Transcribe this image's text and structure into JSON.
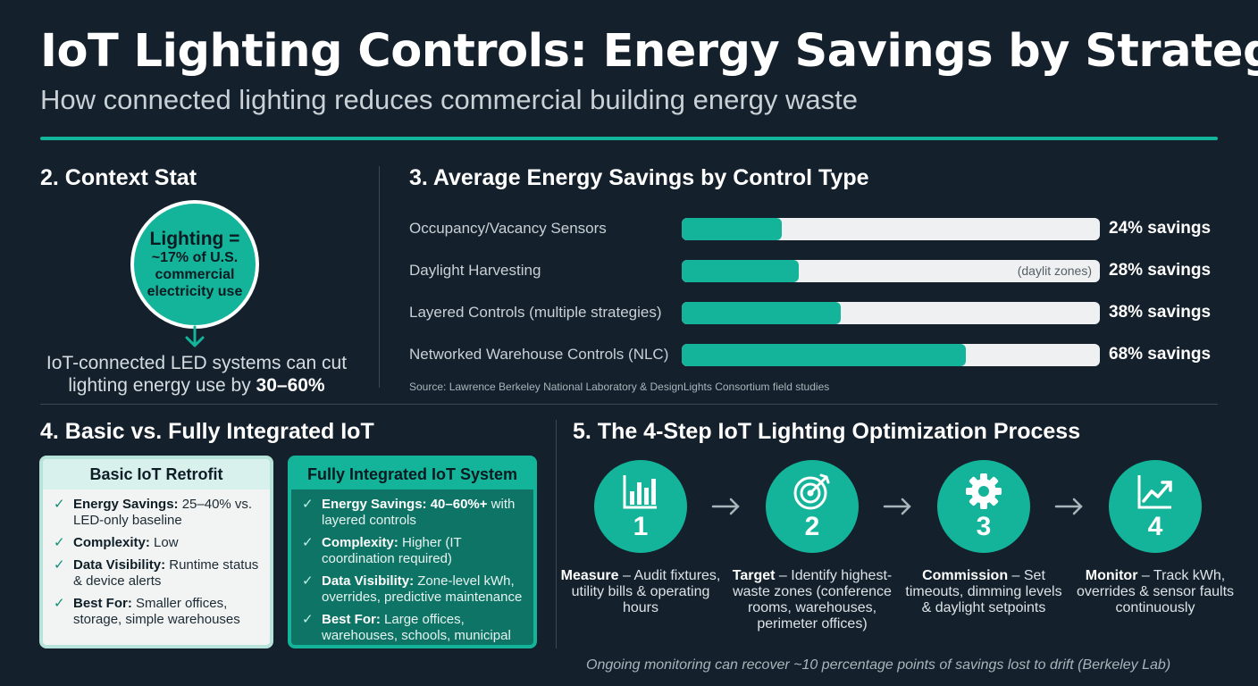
{
  "header": {
    "title": "IoT Lighting Controls: Energy Savings by Strategy",
    "subtitle": "How connected lighting reduces commercial building energy waste"
  },
  "context": {
    "heading": "2. Context Stat",
    "circle_main": "Lighting =",
    "circle_lines": [
      "~17% of U.S.",
      "commercial",
      "electricity use"
    ],
    "text_prefix": "IoT-connected LED systems can cut lighting energy use by ",
    "text_highlight": "30–60%"
  },
  "savings": {
    "heading": "3. Average Energy Savings by Control Type",
    "source": "Source: Lawrence Berkeley National Laboratory & DesignLights Consortium field studies"
  },
  "chart_data": {
    "type": "bar",
    "orientation": "horizontal",
    "categories": [
      "Occupancy/Vacancy Sensors",
      "Daylight Harvesting",
      "Layered Controls (multiple strategies)",
      "Networked Warehouse Controls (NLC)"
    ],
    "values": [
      24,
      28,
      38,
      68
    ],
    "value_labels": [
      "24% savings",
      "28% savings",
      "38% savings",
      "68% savings"
    ],
    "annotations": [
      "",
      "(daylit zones)",
      "",
      ""
    ],
    "xlim": [
      0,
      100
    ],
    "grid": false,
    "color": "#14b49a"
  },
  "comparison": {
    "heading": "4. Basic vs. Fully Integrated IoT",
    "basic": {
      "title": "Basic IoT Retrofit",
      "items": [
        {
          "key": "Energy Savings:",
          "text": " 25–40% vs. LED-only baseline"
        },
        {
          "key": "Complexity:",
          "text": " Low"
        },
        {
          "key": "Data Visibility:",
          "text": " Runtime status & device alerts"
        },
        {
          "key": "Best For:",
          "text": " Smaller offices, storage, simple warehouses"
        }
      ]
    },
    "full": {
      "title": "Fully Integrated IoT System",
      "items": [
        {
          "key": "Energy Savings: 40–60%+",
          "text": " with layered controls"
        },
        {
          "key": "Complexity:",
          "text": " Higher (IT coordination required)"
        },
        {
          "key": "Data Visibility:",
          "text": " Zone-level kWh, overrides, predictive maintenance"
        },
        {
          "key": "Best For:",
          "text": " Large offices, warehouses, schools, municipal buildings"
        }
      ]
    }
  },
  "process": {
    "heading": "5. The 4-Step IoT Lighting Optimization Process",
    "steps": [
      {
        "num": "1",
        "icon": "bar-chart-icon",
        "key": "Measure",
        "text": " – Audit fixtures, utility bills & operating hours"
      },
      {
        "num": "2",
        "icon": "target-icon",
        "key": "Target",
        "text": " – Identify highest-waste zones (conference rooms, warehouses, perimeter offices)"
      },
      {
        "num": "3",
        "icon": "gear-icon",
        "key": "Commission",
        "text": " – Set timeouts, dimming levels & daylight setpoints"
      },
      {
        "num": "4",
        "icon": "trend-up-icon",
        "key": "Monitor",
        "text": " – Track kWh, overrides & sensor faults continuously"
      }
    ],
    "footnote": "Ongoing monitoring can recover ~10 percentage points of savings lost to drift (Berkeley Lab)"
  },
  "colors": {
    "background": "#14202b",
    "accent": "#14b49a",
    "dark_teal": "#0e7566"
  }
}
